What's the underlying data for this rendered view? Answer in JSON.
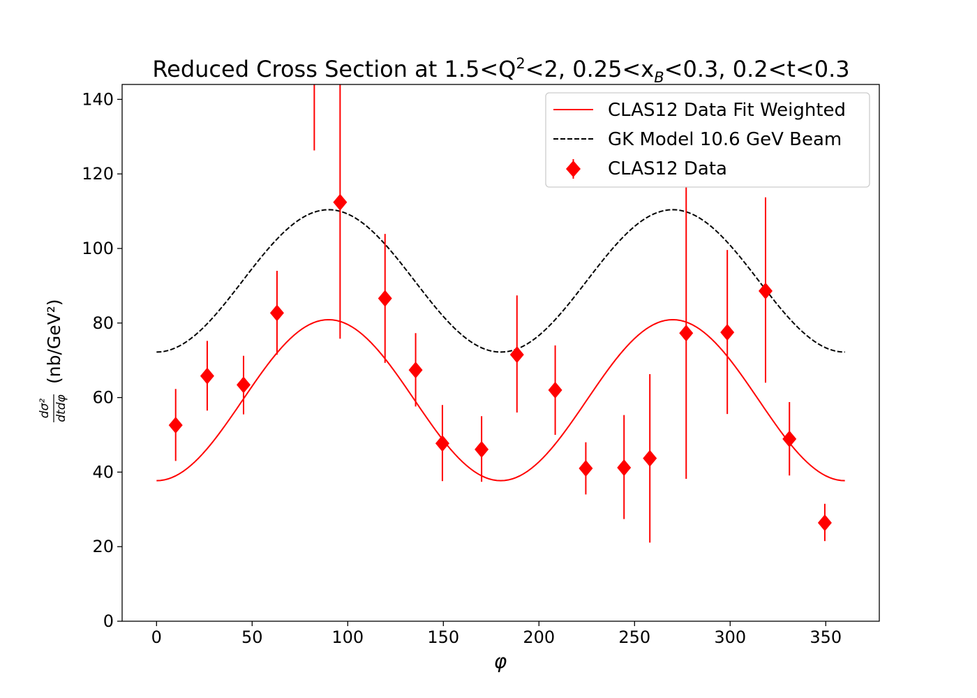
{
  "chart_data": {
    "type": "scatter",
    "title": "Reduced Cross Section at 1.5<Q²<2, 0.25<xB<0.3, 0.2<t<0.3",
    "title_parts": {
      "prefix": "Reduced Cross Section at 1.5<Q",
      "q_sup": "2",
      "mid": "<2, 0.25<x",
      "xb_sub": "B",
      "suffix": "<0.3, 0.2<t<0.3"
    },
    "xlabel": "φ",
    "ylabel": {
      "numerator": "dσ²",
      "denominator": "dtdφ",
      "unit": "(nb/GeV²)"
    },
    "xlim": [
      -18,
      378
    ],
    "ylim": [
      0,
      144
    ],
    "x_ticks": [
      0,
      50,
      100,
      150,
      200,
      250,
      300,
      350
    ],
    "y_ticks": [
      0,
      20,
      40,
      60,
      80,
      100,
      120,
      140
    ],
    "grid": false,
    "legend_position": "top-right",
    "series": [
      {
        "name": "CLAS12 Data Fit Weighted",
        "kind": "line",
        "style": "solid",
        "color": "#ff0000",
        "model": "cos2phi",
        "x_range": [
          0,
          360
        ],
        "offset": 59.3,
        "amplitude": -21.6
      },
      {
        "name": "GK Model 10.6 GeV Beam",
        "kind": "line",
        "style": "dashed",
        "color": "#000000",
        "model": "cos2phi",
        "x_range": [
          0,
          360
        ],
        "offset": 91.3,
        "amplitude": -19.1
      },
      {
        "name": "CLAS12 Data",
        "kind": "errorbar",
        "marker": "diamond",
        "color": "#ff0000",
        "points": [
          {
            "x": 10,
            "y": 52.6,
            "lo": 43.0,
            "hi": 62.3
          },
          {
            "x": 26.5,
            "y": 65.8,
            "lo": 56.5,
            "hi": 75.2
          },
          {
            "x": 45.5,
            "y": 63.4,
            "lo": 55.5,
            "hi": 71.2
          },
          {
            "x": 63,
            "y": 82.7,
            "lo": 71.5,
            "hi": 94.0
          },
          {
            "x": 82.5,
            "y": null,
            "lo": 126.3,
            "hi": 144
          },
          {
            "x": 96,
            "y": 112.4,
            "lo": 75.8,
            "hi": 144
          },
          {
            "x": 119.5,
            "y": 86.6,
            "lo": 69.3,
            "hi": 103.9
          },
          {
            "x": 135.5,
            "y": 67.4,
            "lo": 57.6,
            "hi": 77.3
          },
          {
            "x": 149.5,
            "y": 47.7,
            "lo": 37.6,
            "hi": 58.0
          },
          {
            "x": 170,
            "y": 46.1,
            "lo": 37.4,
            "hi": 55.0
          },
          {
            "x": 188.5,
            "y": 71.5,
            "lo": 56.0,
            "hi": 87.4
          },
          {
            "x": 208.5,
            "y": 62.0,
            "lo": 50.0,
            "hi": 74.0
          },
          {
            "x": 224.5,
            "y": 41.0,
            "lo": 34.0,
            "hi": 48.0
          },
          {
            "x": 244.5,
            "y": 41.2,
            "lo": 27.4,
            "hi": 55.3
          },
          {
            "x": 258,
            "y": 43.7,
            "lo": 21.1,
            "hi": 66.3
          },
          {
            "x": 277,
            "y": 77.3,
            "lo": 38.2,
            "hi": 116.4
          },
          {
            "x": 298.5,
            "y": 77.5,
            "lo": 55.6,
            "hi": 99.6
          },
          {
            "x": 318.5,
            "y": 88.6,
            "lo": 64.0,
            "hi": 113.7
          },
          {
            "x": 331,
            "y": 48.9,
            "lo": 39.1,
            "hi": 58.8
          },
          {
            "x": 349.5,
            "y": 26.4,
            "lo": 21.5,
            "hi": 31.5
          }
        ]
      }
    ]
  }
}
